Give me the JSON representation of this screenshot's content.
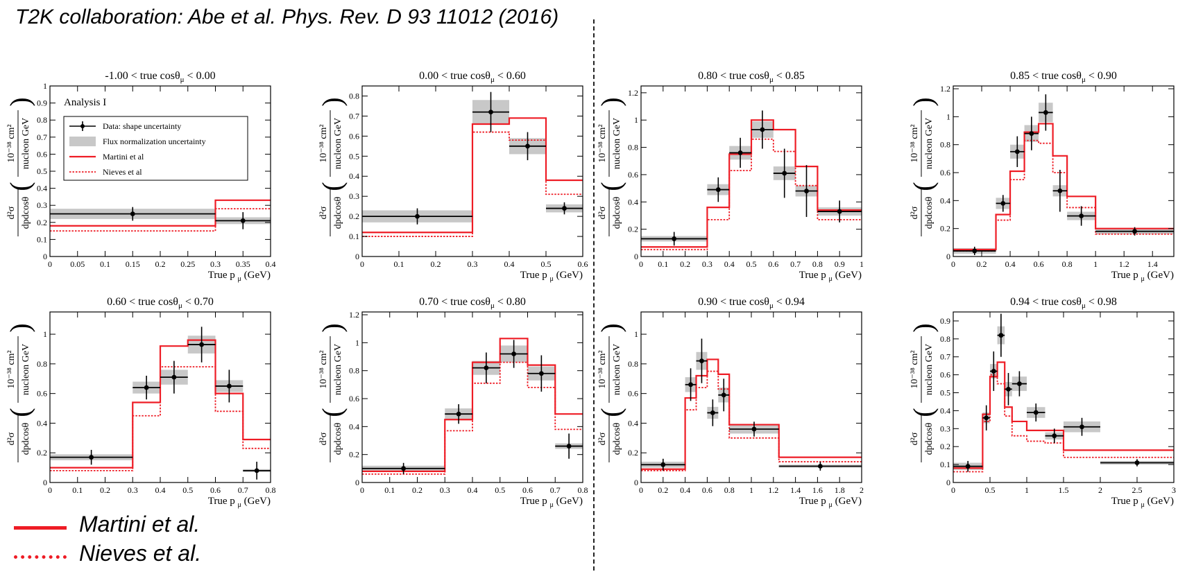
{
  "citation": "T2K collaboration: Abe et al. Phys. Rev. D 93 11012 (2016)",
  "big_legend": [
    {
      "label": "Martini et al.",
      "style": "solid"
    },
    {
      "label": "Nieves et al.",
      "style": "dotted"
    }
  ],
  "colors": {
    "model": "#ee1c25",
    "data": "#000000",
    "band": "#c8c8c8"
  },
  "common": {
    "xlabel": "True p",
    "xlabel_sub": "μ",
    "xlabel_unit": "(GeV)",
    "ylabel_num": "d²σ",
    "ylabel_den": "dpdcosθ",
    "yunit_num": "10⁻³⁸ cm²",
    "yunit_den": "nucleon GeV"
  },
  "panel_legend": {
    "title": "Analysis I",
    "items": [
      {
        "label": "Data: shape uncertainty",
        "kind": "data"
      },
      {
        "label": "Flux normalization uncertainty",
        "kind": "band"
      },
      {
        "label": "Martini et al",
        "kind": "solid"
      },
      {
        "label": "Nieves et al",
        "kind": "dotted"
      }
    ]
  },
  "chart_data": [
    {
      "type": "histogram-errorbar",
      "title": "-1.00 < true cosθ_μ < 0.00",
      "xlim": [
        0,
        0.4
      ],
      "ylim": [
        0,
        1
      ],
      "xticks": [
        0,
        0.05,
        0.1,
        0.15,
        0.2,
        0.25,
        0.3,
        0.35,
        0.4
      ],
      "yticks": [
        0,
        0.1,
        0.2,
        0.3,
        0.4,
        0.5,
        0.6,
        0.7,
        0.8,
        0.9,
        1
      ],
      "edges": [
        0,
        0.3,
        0.4
      ],
      "data": [
        0.25,
        0.21
      ],
      "err": [
        0.04,
        0.05
      ],
      "band": [
        0.03,
        0.02
      ],
      "martini": [
        0.18,
        0.33
      ],
      "nieves": [
        0.15,
        0.28
      ],
      "has_legend": true
    },
    {
      "type": "histogram-errorbar",
      "title": "0.00 < true cosθ_μ < 0.60",
      "xlim": [
        0,
        0.6
      ],
      "ylim": [
        0,
        0.85
      ],
      "xticks": [
        0,
        0.1,
        0.2,
        0.3,
        0.4,
        0.5,
        0.6
      ],
      "yticks": [
        0,
        0.1,
        0.2,
        0.3,
        0.4,
        0.5,
        0.6,
        0.7,
        0.8
      ],
      "edges": [
        0,
        0.3,
        0.4,
        0.5,
        0.6
      ],
      "data": [
        0.2,
        0.72,
        0.55,
        0.24
      ],
      "err": [
        0.04,
        0.1,
        0.07,
        0.03
      ],
      "band": [
        0.03,
        0.06,
        0.04,
        0.02
      ],
      "martini": [
        0.12,
        0.66,
        0.69,
        0.38
      ],
      "nieves": [
        0.1,
        0.62,
        0.58,
        0.31
      ]
    },
    {
      "type": "histogram-errorbar",
      "title": "0.80 < true cosθ_μ < 0.85",
      "xlim": [
        0,
        1
      ],
      "ylim": [
        0,
        1.25
      ],
      "xticks": [
        0,
        0.1,
        0.2,
        0.3,
        0.4,
        0.5,
        0.6,
        0.7,
        0.8,
        0.9,
        1
      ],
      "yticks": [
        0,
        0.2,
        0.4,
        0.6,
        0.8,
        1,
        1.2
      ],
      "edges": [
        0,
        0.3,
        0.4,
        0.5,
        0.6,
        0.7,
        0.8,
        1
      ],
      "data": [
        0.13,
        0.49,
        0.76,
        0.93,
        0.61,
        0.48,
        0.33
      ],
      "err": [
        0.05,
        0.09,
        0.11,
        0.14,
        0.18,
        0.19,
        0.08
      ],
      "band": [
        0.02,
        0.04,
        0.05,
        0.06,
        0.05,
        0.04,
        0.03
      ],
      "martini": [
        0.07,
        0.36,
        0.75,
        1.0,
        0.93,
        0.66,
        0.34
      ],
      "nieves": [
        0.05,
        0.27,
        0.63,
        0.86,
        0.77,
        0.52,
        0.27
      ]
    },
    {
      "type": "histogram-errorbar",
      "title": "0.85 < true cosθ_μ < 0.90",
      "xlim": [
        0,
        1.55
      ],
      "ylim": [
        0,
        1.22
      ],
      "xticks": [
        0,
        0.2,
        0.4,
        0.6,
        0.8,
        1,
        1.2,
        1.4
      ],
      "yticks": [
        0,
        0.2,
        0.4,
        0.6,
        0.8,
        1,
        1.2
      ],
      "edges": [
        0,
        0.3,
        0.4,
        0.5,
        0.6,
        0.7,
        0.8,
        1.0,
        1.55
      ],
      "data": [
        0.04,
        0.38,
        0.75,
        0.88,
        1.03,
        0.47,
        0.29,
        0.18
      ],
      "err": [
        0.03,
        0.06,
        0.11,
        0.12,
        0.13,
        0.15,
        0.07,
        0.03
      ],
      "band": [
        0.02,
        0.04,
        0.05,
        0.06,
        0.07,
        0.04,
        0.03,
        0.02
      ],
      "martini": [
        0.05,
        0.3,
        0.61,
        0.89,
        0.95,
        0.72,
        0.43,
        0.2
      ],
      "nieves": [
        0.04,
        0.26,
        0.55,
        0.83,
        0.81,
        0.6,
        0.35,
        0.16
      ]
    },
    {
      "type": "histogram-errorbar",
      "title": "0.60 < true cosθ_μ < 0.70",
      "xlim": [
        0,
        0.8
      ],
      "ylim": [
        0,
        1.15
      ],
      "xticks": [
        0,
        0.1,
        0.2,
        0.3,
        0.4,
        0.5,
        0.6,
        0.7,
        0.8
      ],
      "yticks": [
        0,
        0.2,
        0.4,
        0.6,
        0.8,
        1
      ],
      "edges": [
        0,
        0.3,
        0.4,
        0.5,
        0.6,
        0.7,
        0.8
      ],
      "data": [
        0.17,
        0.64,
        0.71,
        0.93,
        0.65,
        0.08
      ],
      "err": [
        0.05,
        0.08,
        0.11,
        0.12,
        0.11,
        0.06
      ],
      "band": [
        0.02,
        0.04,
        0.05,
        0.06,
        0.04,
        0.01
      ],
      "martini": [
        0.1,
        0.54,
        0.92,
        0.96,
        0.6,
        0.29
      ],
      "nieves": [
        0.08,
        0.45,
        0.78,
        0.78,
        0.48,
        0.23
      ]
    },
    {
      "type": "histogram-errorbar",
      "title": "0.70 < true cosθ_μ < 0.80",
      "xlim": [
        0,
        0.8
      ],
      "ylim": [
        0,
        1.22
      ],
      "xticks": [
        0,
        0.1,
        0.2,
        0.3,
        0.4,
        0.5,
        0.6,
        0.7,
        0.8
      ],
      "yticks": [
        0,
        0.2,
        0.4,
        0.6,
        0.8,
        1,
        1.2
      ],
      "edges": [
        0,
        0.3,
        0.4,
        0.5,
        0.6,
        0.7,
        0.8
      ],
      "data": [
        0.1,
        0.49,
        0.82,
        0.92,
        0.78,
        0.26
      ],
      "err": [
        0.04,
        0.07,
        0.11,
        0.1,
        0.13,
        0.09
      ],
      "band": [
        0.02,
        0.04,
        0.05,
        0.06,
        0.05,
        0.02
      ],
      "martini": [
        0.08,
        0.45,
        0.86,
        1.03,
        0.84,
        0.49
      ],
      "nieves": [
        0.06,
        0.37,
        0.71,
        0.86,
        0.68,
        0.38
      ]
    },
    {
      "type": "histogram-errorbar",
      "title": "0.90 < true cosθ_μ < 0.94",
      "xlim": [
        0,
        2
      ],
      "ylim": [
        0,
        1.15
      ],
      "xticks": [
        0,
        0.2,
        0.4,
        0.6,
        0.8,
        1,
        1.2,
        1.4,
        1.6,
        1.8,
        2
      ],
      "yticks": [
        0,
        0.2,
        0.4,
        0.6,
        0.8,
        1
      ],
      "edges": [
        0,
        0.4,
        0.5,
        0.6,
        0.7,
        0.8,
        1.25,
        2.0
      ],
      "data": [
        0.12,
        0.66,
        0.82,
        0.47,
        0.59,
        0.36,
        0.11
      ],
      "err": [
        0.04,
        0.11,
        0.15,
        0.09,
        0.11,
        0.05,
        0.03
      ],
      "band": [
        0.02,
        0.05,
        0.06,
        0.04,
        0.05,
        0.03,
        0.01
      ],
      "martini": [
        0.09,
        0.57,
        0.72,
        0.83,
        0.73,
        0.39,
        0.17
      ],
      "nieves": [
        0.08,
        0.49,
        0.64,
        0.75,
        0.63,
        0.3,
        0.14
      ]
    },
    {
      "type": "histogram-errorbar",
      "title": "0.94 < true cosθ_μ < 0.98",
      "xlim": [
        0,
        3
      ],
      "ylim": [
        0,
        0.95
      ],
      "xticks": [
        0,
        0.5,
        1,
        1.5,
        2,
        2.5,
        3
      ],
      "yticks": [
        0,
        0.1,
        0.2,
        0.3,
        0.4,
        0.5,
        0.6,
        0.7,
        0.8,
        0.9
      ],
      "edges": [
        0,
        0.4,
        0.5,
        0.6,
        0.7,
        0.8,
        1.0,
        1.25,
        1.5,
        2.0,
        3.0
      ],
      "data": [
        0.09,
        0.36,
        0.62,
        0.82,
        0.52,
        0.55,
        0.39,
        0.26,
        0.31,
        0.11
      ],
      "err": [
        0.03,
        0.07,
        0.11,
        0.12,
        0.09,
        0.07,
        0.05,
        0.04,
        0.05,
        0.02
      ],
      "band": [
        0.02,
        0.03,
        0.04,
        0.05,
        0.04,
        0.04,
        0.03,
        0.02,
        0.03,
        0.01
      ],
      "martini": [
        0.08,
        0.38,
        0.59,
        0.67,
        0.42,
        0.34,
        0.29,
        0.29,
        0.18,
        0.18
      ],
      "nieves": [
        0.06,
        0.34,
        0.6,
        0.55,
        0.37,
        0.26,
        0.23,
        0.22,
        0.14,
        0.14
      ]
    }
  ]
}
